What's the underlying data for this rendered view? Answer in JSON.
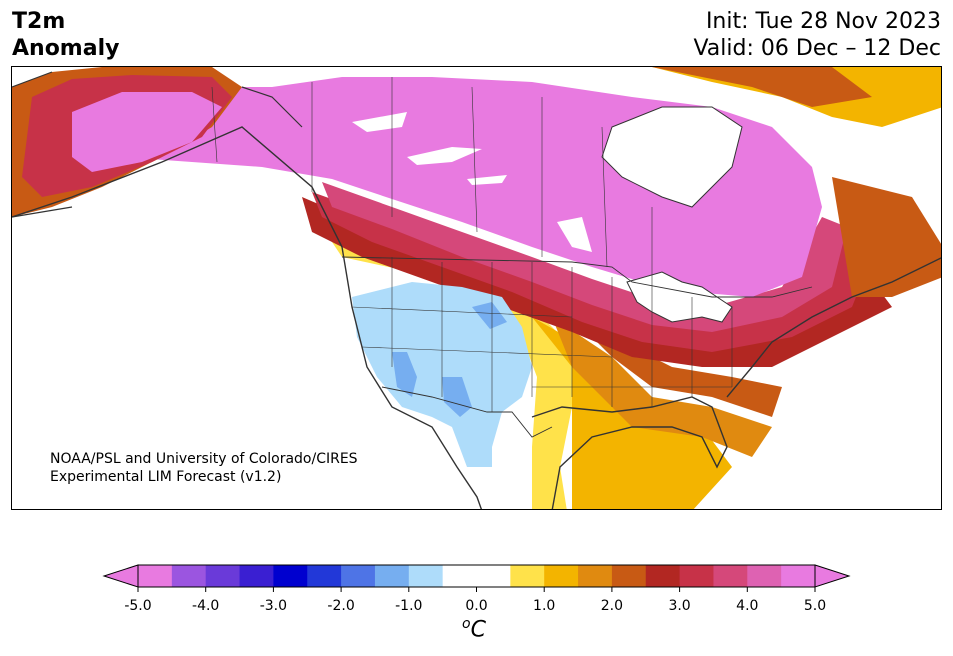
{
  "header": {
    "title_line1": "T2m",
    "title_line2": "Anomaly",
    "init": "Init: Tue 28 Nov 2023",
    "valid": "Valid: 06 Dec – 12 Dec"
  },
  "map": {
    "credit_line1": "NOAA/PSL and University of Colorado/CIRES",
    "credit_line2": "Experimental LIM Forecast (v1.2)",
    "colors": {
      "land_border": "#333333",
      "water": "#ffffff"
    }
  },
  "colorbar": {
    "unit": "°C",
    "unit_display": "oC",
    "tick_labels": [
      "-5.0",
      "-4.0",
      "-3.0",
      "-2.0",
      "-1.0",
      "0.0",
      "1.0",
      "2.0",
      "3.0",
      "4.0",
      "5.0"
    ],
    "colors": [
      "#e87ae0",
      "#9b55e0",
      "#6a3ad9",
      "#3a1fd2",
      "#0000cf",
      "#2238d8",
      "#4e74e6",
      "#76aef0",
      "#aedcfa",
      "#ffffff",
      "#ffffff",
      "#ffe24a",
      "#f3b400",
      "#e08a10",
      "#c85a14",
      "#b22722",
      "#c73248",
      "#d5487a",
      "#de62b2",
      "#e87ae0"
    ]
  }
}
